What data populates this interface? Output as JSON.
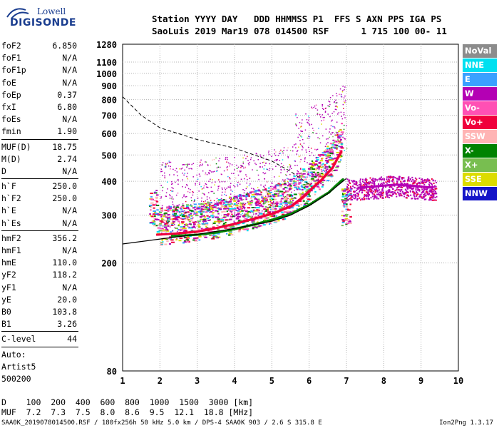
{
  "logo": {
    "brand": "Lowell",
    "name": "DIGISONDE"
  },
  "header": {
    "line1": "Station YYYY DAY   DDD HHMMSS P1  FFS S AXN PPS IGA PS",
    "line2": "SaoLuis 2019 Mar19 078 014500 RSF      1 715 100 00- 11"
  },
  "params": {
    "group1": [
      {
        "name": "foF2",
        "value": "6.850"
      },
      {
        "name": "foF1",
        "value": "N/A"
      },
      {
        "name": "foF1p",
        "value": "N/A"
      },
      {
        "name": "foE",
        "value": "N/A"
      },
      {
        "name": "foEp",
        "value": "0.37"
      },
      {
        "name": "fxI",
        "value": "6.80"
      },
      {
        "name": "foEs",
        "value": "N/A"
      },
      {
        "name": "fmin",
        "value": "1.90"
      }
    ],
    "group2": [
      {
        "name": "MUF(D)",
        "value": "18.75"
      },
      {
        "name": "M(D)",
        "value": "2.74"
      },
      {
        "name": "D",
        "value": "N/A"
      }
    ],
    "group3": [
      {
        "name": "h`F",
        "value": "250.0"
      },
      {
        "name": "h`F2",
        "value": "250.0"
      },
      {
        "name": "h`E",
        "value": "N/A"
      },
      {
        "name": "h`Es",
        "value": "N/A"
      }
    ],
    "group4": [
      {
        "name": "hmF2",
        "value": "356.2"
      },
      {
        "name": "hmF1",
        "value": "N/A"
      },
      {
        "name": "hmE",
        "value": "110.0"
      },
      {
        "name": "yF2",
        "value": "118.2"
      },
      {
        "name": "yF1",
        "value": "N/A"
      },
      {
        "name": "yE",
        "value": "20.0"
      },
      {
        "name": "B0",
        "value": "103.8"
      },
      {
        "name": "B1",
        "value": "3.26"
      }
    ],
    "group5": [
      {
        "name": "C-level",
        "value": "44"
      }
    ],
    "auto": [
      "Auto:",
      "Artist5",
      "500200"
    ]
  },
  "legend": [
    {
      "label": "NoVal",
      "color": "#8c8c8c"
    },
    {
      "label": "NNE",
      "color": "#00e0f0"
    },
    {
      "label": "E",
      "color": "#3aa0ff"
    },
    {
      "label": "W",
      "color": "#b400b4"
    },
    {
      "label": "Vo-",
      "color": "#ff50b4"
    },
    {
      "label": "Vo+",
      "color": "#f0003c"
    },
    {
      "label": "SSW",
      "color": "#ffb4b4"
    },
    {
      "label": "X-",
      "color": "#008200"
    },
    {
      "label": "X+",
      "color": "#78be50"
    },
    {
      "label": "SSE",
      "color": "#dcdc00"
    },
    {
      "label": "NNW",
      "color": "#1414c8"
    }
  ],
  "bottom": {
    "d_line": "D    100  200  400  600  800  1000  1500  3000 [km]",
    "muf_line": "MUF  7.2  7.3  7.5  8.0  8.6  9.5  12.1  18.8 [MHz]"
  },
  "footer": {
    "info": "SAA0K_2019078014500.RSF / 180fx256h 50 kHz 5.0 km / DPS-4 SAA0K 903 / 2.6 S 315.8 E",
    "version": "Ion2Png 1.3.17"
  },
  "chart_data": {
    "type": "scatter",
    "title": "",
    "xlabel": "",
    "ylabel": "",
    "xlim": [
      1,
      10
    ],
    "ylim": [
      80,
      1280
    ],
    "y_scale": "log",
    "x_ticks": [
      1,
      2,
      3,
      4,
      5,
      6,
      7,
      8,
      9,
      10
    ],
    "y_ticks": [
      80,
      200,
      300,
      400,
      500,
      600,
      700,
      800,
      900,
      1000,
      1100,
      1280
    ],
    "grid": "dotted",
    "legend_position": "right",
    "traces": [
      {
        "name": "Vo+",
        "points": [
          [
            1.9,
            255
          ],
          [
            2.5,
            258
          ],
          [
            3.0,
            262
          ],
          [
            3.5,
            270
          ],
          [
            4.0,
            280
          ],
          [
            4.5,
            292
          ],
          [
            5.0,
            305
          ],
          [
            5.5,
            325
          ],
          [
            5.8,
            350
          ],
          [
            6.0,
            372
          ],
          [
            6.3,
            405
          ],
          [
            6.6,
            450
          ],
          [
            6.85,
            520
          ]
        ]
      },
      {
        "name": "X-",
        "points": [
          [
            2.3,
            252
          ],
          [
            3.0,
            255
          ],
          [
            3.5,
            260
          ],
          [
            4.0,
            268
          ],
          [
            4.5,
            278
          ],
          [
            5.0,
            290
          ],
          [
            5.5,
            305
          ],
          [
            6.0,
            330
          ],
          [
            6.5,
            365
          ],
          [
            6.9,
            410
          ]
        ]
      },
      {
        "name": "W",
        "points": [
          [
            7.3,
            380
          ],
          [
            7.8,
            385
          ],
          [
            8.3,
            390
          ],
          [
            8.8,
            385
          ],
          [
            9.3,
            380
          ]
        ]
      }
    ],
    "fitted_profile": [
      [
        1.0,
        235
      ],
      [
        2,
        245
      ],
      [
        3,
        255
      ],
      [
        4,
        268
      ],
      [
        5,
        285
      ],
      [
        5.5,
        300
      ],
      [
        6,
        325
      ],
      [
        6.5,
        360
      ],
      [
        7.0,
        410
      ]
    ],
    "dashed_curve": [
      [
        1.0,
        820
      ],
      [
        1.5,
        700
      ],
      [
        2,
        630
      ],
      [
        3,
        570
      ],
      [
        4,
        530
      ],
      [
        5,
        475
      ],
      [
        5.5,
        435
      ],
      [
        6.0,
        390
      ]
    ]
  }
}
